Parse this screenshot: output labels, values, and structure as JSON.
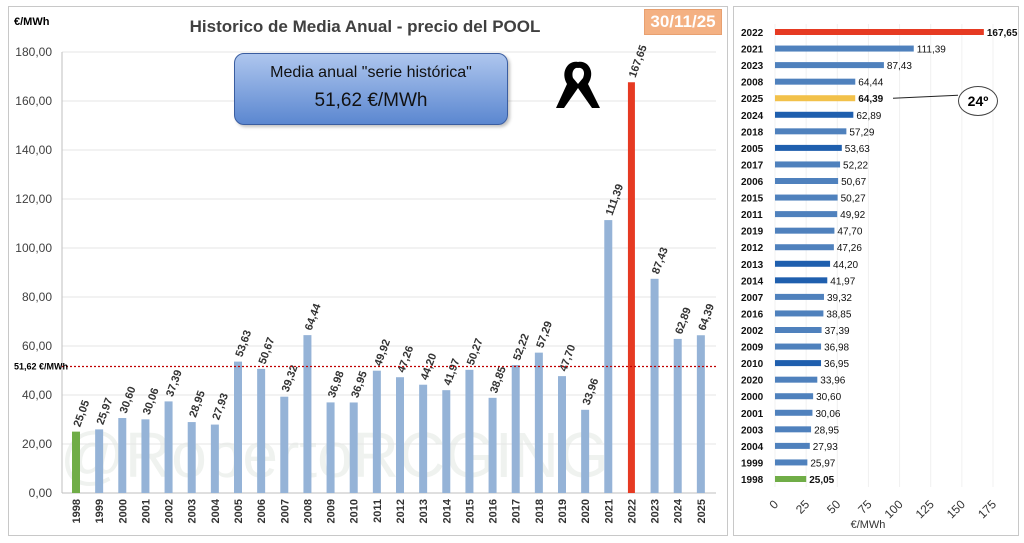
{
  "date_badge": "30/11/25",
  "average_box": {
    "label": "Media anual \"serie histórica\"",
    "value": "51,62 €/MWh"
  },
  "average_line_label": "51,62 €/MWh",
  "rank_badge": "24º",
  "watermark": "@RobertoRCGING",
  "colors": {
    "default_bar": "#95b3d7",
    "highlight_max": "#e63a22",
    "highlight_first": "#70ad47",
    "ranking_bar": "#4f81bd",
    "ranking_dark_bar": "#1f5fae",
    "ranking_current": "#f2c14a",
    "average_line": "#c00000"
  },
  "chart_data": [
    {
      "type": "bar",
      "title": "Historico de Media Anual - precio del POOL",
      "ylabel": "€/MWh",
      "ylim": [
        0,
        180
      ],
      "yticks": [
        "0,00",
        "20,00",
        "40,00",
        "60,00",
        "80,00",
        "100,00",
        "120,00",
        "140,00",
        "160,00",
        "180,00"
      ],
      "average_line": 51.62,
      "categories": [
        "1998",
        "1999",
        "2000",
        "2001",
        "2002",
        "2003",
        "2004",
        "2005",
        "2006",
        "2007",
        "2008",
        "2009",
        "2010",
        "2011",
        "2012",
        "2013",
        "2014",
        "2015",
        "2016",
        "2017",
        "2018",
        "2019",
        "2020",
        "2021",
        "2022",
        "2023",
        "2024",
        "2025"
      ],
      "values": [
        25.05,
        25.97,
        30.6,
        30.06,
        37.39,
        28.95,
        27.93,
        53.63,
        50.67,
        39.32,
        64.44,
        36.98,
        36.95,
        49.92,
        47.26,
        44.2,
        41.97,
        50.27,
        38.85,
        52.22,
        57.29,
        47.7,
        33.96,
        111.39,
        167.65,
        87.43,
        62.89,
        64.39
      ],
      "value_labels": [
        "25,05",
        "25,97",
        "30,60",
        "30,06",
        "37,39",
        "28,95",
        "27,93",
        "53,63",
        "50,67",
        "39,32",
        "64,44",
        "36,98",
        "36,95",
        "49,92",
        "47,26",
        "44,20",
        "41,97",
        "50,27",
        "38,85",
        "52,22",
        "57,29",
        "47,70",
        "33,96",
        "111,39",
        "167,65",
        "87,43",
        "62,89",
        "64,39"
      ]
    },
    {
      "type": "bar",
      "orientation": "horizontal",
      "xlabel": "€/MWh",
      "xlim": [
        0,
        175
      ],
      "xticks": [
        "0",
        "25",
        "50",
        "75",
        "100",
        "125",
        "150",
        "175"
      ],
      "categories": [
        "2022",
        "2021",
        "2023",
        "2008",
        "2025",
        "2024",
        "2018",
        "2005",
        "2017",
        "2006",
        "2015",
        "2011",
        "2019",
        "2012",
        "2013",
        "2014",
        "2007",
        "2016",
        "2002",
        "2009",
        "2010",
        "2020",
        "2000",
        "2001",
        "2003",
        "2004",
        "1999",
        "1998"
      ],
      "values": [
        167.65,
        111.39,
        87.43,
        64.44,
        64.39,
        62.89,
        57.29,
        53.63,
        52.22,
        50.67,
        50.27,
        49.92,
        47.7,
        47.26,
        44.2,
        41.97,
        39.32,
        38.85,
        37.39,
        36.98,
        36.95,
        33.96,
        30.6,
        30.06,
        28.95,
        27.93,
        25.97,
        25.05
      ],
      "value_labels": [
        "167,65",
        "111,39",
        "87,43",
        "64,44",
        "64,39",
        "62,89",
        "57,29",
        "53,63",
        "52,22",
        "50,67",
        "50,27",
        "49,92",
        "47,70",
        "47,26",
        "44,20",
        "41,97",
        "39,32",
        "38,85",
        "37,39",
        "36,98",
        "36,95",
        "33,96",
        "30,60",
        "30,06",
        "28,95",
        "27,93",
        "25,97",
        "25,05"
      ]
    }
  ]
}
